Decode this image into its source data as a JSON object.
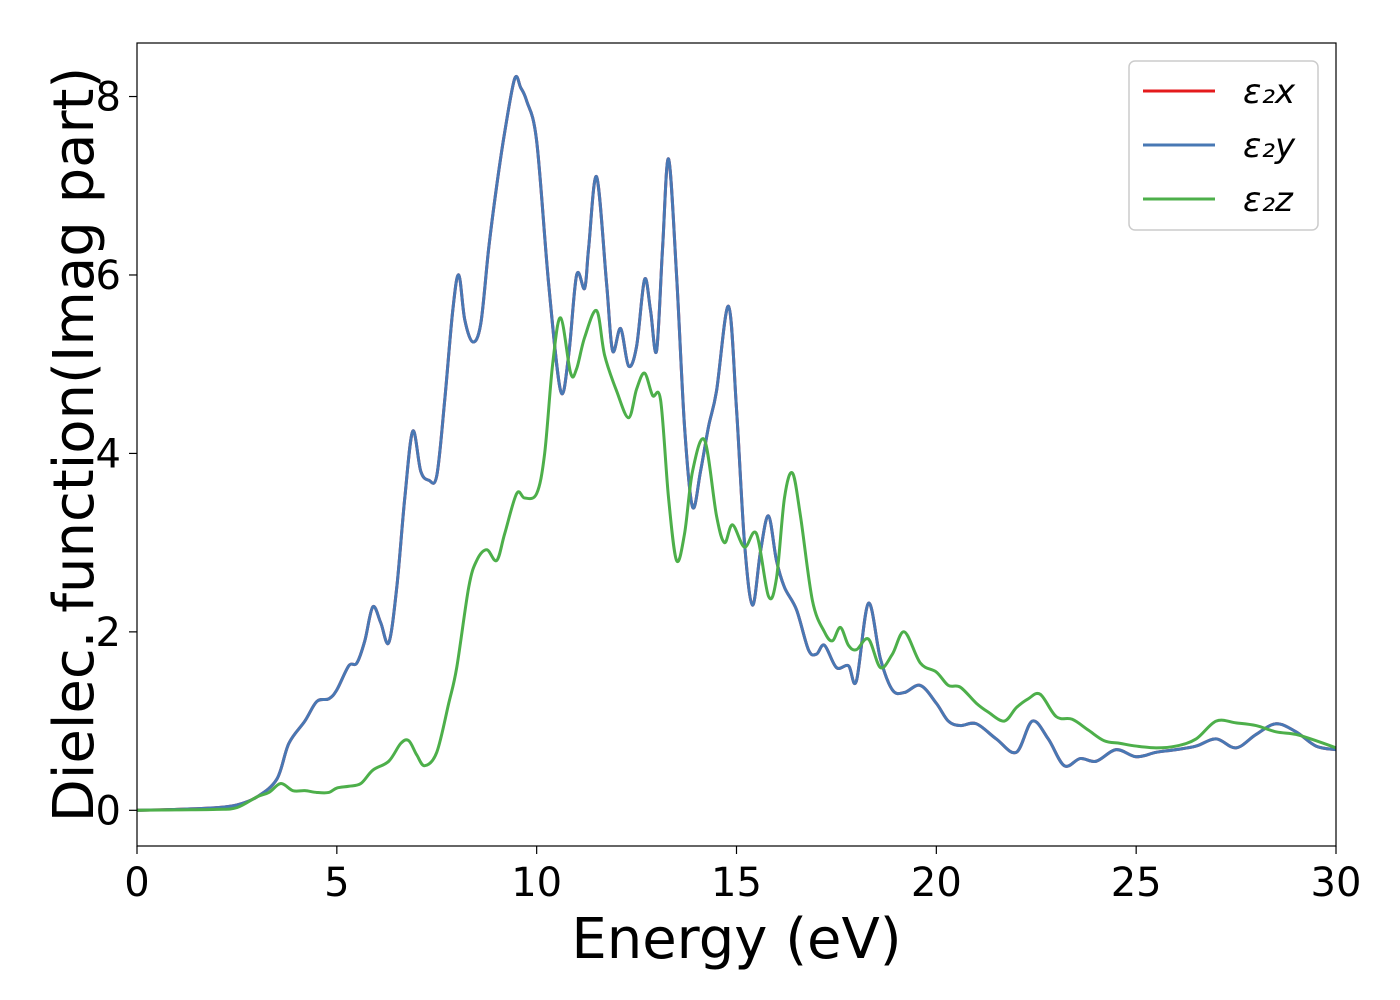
{
  "chart_data": {
    "type": "line",
    "title": "",
    "xlabel": "Energy (eV)",
    "ylabel": "Dielec. function(Imag part)",
    "xlim": [
      0,
      30
    ],
    "ylim": [
      -0.4,
      8.6
    ],
    "xticks": [
      0,
      5,
      10,
      15,
      20,
      25,
      30
    ],
    "yticks": [
      0,
      2,
      4,
      6,
      8
    ],
    "grid": false,
    "legend_position": "top-right",
    "series": [
      {
        "name": "ε₂x",
        "color": "#e41a1c",
        "x": [
          0,
          1,
          2,
          2.5,
          3,
          3.5,
          3.8,
          4.2,
          4.5,
          4.8,
          5.0,
          5.3,
          5.5,
          5.7,
          5.9,
          6.1,
          6.3,
          6.5,
          6.7,
          6.9,
          7.1,
          7.3,
          7.5,
          7.7,
          7.9,
          8.05,
          8.2,
          8.4,
          8.6,
          8.8,
          9.0,
          9.2,
          9.45,
          9.6,
          9.75,
          10.0,
          10.3,
          10.6,
          10.8,
          11.0,
          11.2,
          11.3,
          11.5,
          11.75,
          11.9,
          12.1,
          12.3,
          12.5,
          12.7,
          12.85,
          13.0,
          13.15,
          13.3,
          13.5,
          13.7,
          13.9,
          14.1,
          14.3,
          14.5,
          14.8,
          15.0,
          15.2,
          15.4,
          15.6,
          15.8,
          16.0,
          16.2,
          16.5,
          16.8,
          17.0,
          17.2,
          17.5,
          17.8,
          18.0,
          18.3,
          18.6,
          18.9,
          19.2,
          19.6,
          20.0,
          20.3,
          20.6,
          21.0,
          21.5,
          22.0,
          22.4,
          22.8,
          23.2,
          23.6,
          24.0,
          24.5,
          25.0,
          25.5,
          26.0,
          26.5,
          27.0,
          27.5,
          28.0,
          28.5,
          29.0,
          29.5,
          30.0
        ],
        "y": [
          0,
          0.01,
          0.03,
          0.06,
          0.15,
          0.35,
          0.75,
          1.0,
          1.22,
          1.25,
          1.35,
          1.62,
          1.65,
          1.9,
          2.28,
          2.1,
          1.88,
          2.5,
          3.5,
          4.25,
          3.8,
          3.7,
          3.75,
          4.6,
          5.6,
          6.0,
          5.5,
          5.25,
          5.45,
          6.3,
          7.0,
          7.6,
          8.2,
          8.1,
          7.95,
          7.5,
          5.9,
          4.7,
          5.1,
          6.0,
          5.85,
          6.3,
          7.1,
          5.9,
          5.15,
          5.4,
          4.98,
          5.2,
          5.95,
          5.6,
          5.15,
          6.3,
          7.3,
          6.0,
          4.3,
          3.4,
          3.8,
          4.3,
          4.7,
          5.65,
          4.5,
          3.0,
          2.3,
          2.9,
          3.3,
          2.8,
          2.5,
          2.25,
          1.8,
          1.75,
          1.85,
          1.6,
          1.62,
          1.45,
          2.32,
          1.7,
          1.35,
          1.32,
          1.4,
          1.2,
          1.0,
          0.95,
          0.97,
          0.8,
          0.65,
          1.0,
          0.8,
          0.5,
          0.58,
          0.55,
          0.68,
          0.6,
          0.65,
          0.68,
          0.72,
          0.8,
          0.7,
          0.85,
          0.97,
          0.88,
          0.72,
          0.68
        ]
      },
      {
        "name": "ε₂y",
        "color": "#4878b4",
        "x": [
          0,
          1,
          2,
          2.5,
          3,
          3.5,
          3.8,
          4.2,
          4.5,
          4.8,
          5.0,
          5.3,
          5.5,
          5.7,
          5.9,
          6.1,
          6.3,
          6.5,
          6.7,
          6.9,
          7.1,
          7.3,
          7.5,
          7.7,
          7.9,
          8.05,
          8.2,
          8.4,
          8.6,
          8.8,
          9.0,
          9.2,
          9.45,
          9.6,
          9.75,
          10.0,
          10.3,
          10.6,
          10.8,
          11.0,
          11.2,
          11.3,
          11.5,
          11.75,
          11.9,
          12.1,
          12.3,
          12.5,
          12.7,
          12.85,
          13.0,
          13.15,
          13.3,
          13.5,
          13.7,
          13.9,
          14.1,
          14.3,
          14.5,
          14.8,
          15.0,
          15.2,
          15.4,
          15.6,
          15.8,
          16.0,
          16.2,
          16.5,
          16.8,
          17.0,
          17.2,
          17.5,
          17.8,
          18.0,
          18.3,
          18.6,
          18.9,
          19.2,
          19.6,
          20.0,
          20.3,
          20.6,
          21.0,
          21.5,
          22.0,
          22.4,
          22.8,
          23.2,
          23.6,
          24.0,
          24.5,
          25.0,
          25.5,
          26.0,
          26.5,
          27.0,
          27.5,
          28.0,
          28.5,
          29.0,
          29.5,
          30.0
        ],
        "y": [
          0,
          0.01,
          0.03,
          0.06,
          0.15,
          0.35,
          0.75,
          1.0,
          1.22,
          1.25,
          1.35,
          1.62,
          1.65,
          1.9,
          2.28,
          2.1,
          1.88,
          2.5,
          3.5,
          4.25,
          3.8,
          3.7,
          3.75,
          4.6,
          5.6,
          6.0,
          5.5,
          5.25,
          5.45,
          6.3,
          7.0,
          7.6,
          8.2,
          8.1,
          7.95,
          7.5,
          5.9,
          4.7,
          5.1,
          6.0,
          5.85,
          6.3,
          7.1,
          5.9,
          5.15,
          5.4,
          4.98,
          5.2,
          5.95,
          5.6,
          5.15,
          6.3,
          7.3,
          6.0,
          4.3,
          3.4,
          3.8,
          4.3,
          4.7,
          5.65,
          4.5,
          3.0,
          2.3,
          2.9,
          3.3,
          2.8,
          2.5,
          2.25,
          1.8,
          1.75,
          1.85,
          1.6,
          1.62,
          1.45,
          2.32,
          1.7,
          1.35,
          1.32,
          1.4,
          1.2,
          1.0,
          0.95,
          0.97,
          0.8,
          0.65,
          1.0,
          0.8,
          0.5,
          0.58,
          0.55,
          0.68,
          0.6,
          0.65,
          0.68,
          0.72,
          0.8,
          0.7,
          0.85,
          0.97,
          0.88,
          0.72,
          0.68
        ]
      },
      {
        "name": "ε₂z",
        "color": "#4daf4a",
        "x": [
          0,
          1,
          2,
          2.5,
          3,
          3.3,
          3.6,
          3.9,
          4.2,
          4.5,
          4.8,
          5.0,
          5.3,
          5.6,
          5.9,
          6.3,
          6.6,
          6.8,
          7.0,
          7.2,
          7.5,
          7.8,
          8.0,
          8.3,
          8.5,
          8.75,
          9.0,
          9.2,
          9.5,
          9.7,
          10.0,
          10.2,
          10.4,
          10.6,
          10.85,
          11.0,
          11.2,
          11.5,
          11.7,
          12.0,
          12.3,
          12.5,
          12.7,
          12.9,
          13.1,
          13.3,
          13.5,
          13.7,
          13.9,
          14.2,
          14.5,
          14.7,
          14.9,
          15.2,
          15.5,
          15.8,
          16.0,
          16.2,
          16.4,
          16.6,
          16.9,
          17.2,
          17.4,
          17.6,
          17.8,
          18.0,
          18.3,
          18.6,
          18.9,
          19.2,
          19.6,
          20.0,
          20.3,
          20.6,
          21.0,
          21.3,
          21.7,
          22.0,
          22.3,
          22.6,
          23.0,
          23.4,
          23.8,
          24.2,
          24.6,
          25.0,
          25.5,
          26.0,
          26.5,
          27.0,
          27.5,
          28.0,
          28.5,
          29.0,
          29.5,
          30.0
        ],
        "y": [
          0,
          0.005,
          0.01,
          0.03,
          0.15,
          0.2,
          0.3,
          0.22,
          0.22,
          0.2,
          0.2,
          0.25,
          0.27,
          0.3,
          0.45,
          0.55,
          0.75,
          0.78,
          0.62,
          0.5,
          0.65,
          1.2,
          1.6,
          2.5,
          2.8,
          2.92,
          2.8,
          3.1,
          3.55,
          3.5,
          3.55,
          4.0,
          5.0,
          5.52,
          4.9,
          4.95,
          5.3,
          5.6,
          5.1,
          4.7,
          4.4,
          4.72,
          4.9,
          4.65,
          4.6,
          3.5,
          2.8,
          3.1,
          3.8,
          4.15,
          3.3,
          3.0,
          3.2,
          2.95,
          3.1,
          2.4,
          2.6,
          3.5,
          3.78,
          3.3,
          2.35,
          2.0,
          1.9,
          2.05,
          1.85,
          1.8,
          1.92,
          1.6,
          1.75,
          2.0,
          1.65,
          1.55,
          1.4,
          1.38,
          1.2,
          1.1,
          1.0,
          1.15,
          1.25,
          1.3,
          1.05,
          1.02,
          0.9,
          0.78,
          0.75,
          0.72,
          0.7,
          0.72,
          0.8,
          1.0,
          0.98,
          0.95,
          0.88,
          0.85,
          0.78,
          0.7
        ]
      }
    ]
  }
}
